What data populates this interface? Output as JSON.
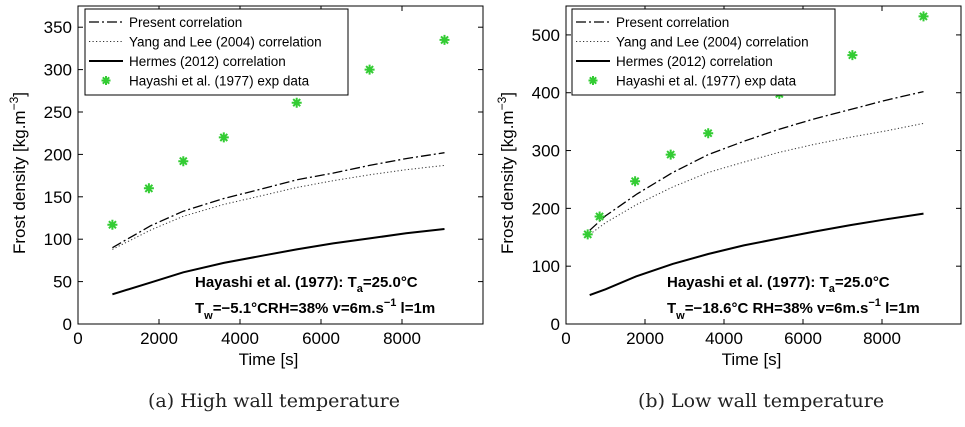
{
  "chart_data": [
    {
      "type": "line",
      "panel": "a",
      "xlabel": "Time [s]",
      "ylabel": "Frost density [kg.m",
      "ylabel_sup": "−3",
      "ylabel_close": "]",
      "xlim": [
        0,
        10000
      ],
      "ylim": [
        0,
        375
      ],
      "xticks": [
        0,
        2000,
        4000,
        6000,
        8000
      ],
      "yticks": [
        0,
        50,
        100,
        150,
        200,
        250,
        300,
        350
      ],
      "legend_position": "top-left",
      "series": [
        {
          "name": "Present correlation",
          "style": "dashdot",
          "x": [
            850,
            1800,
            2600,
            3600,
            4600,
            5400,
            6300,
            7200,
            8100,
            9050
          ],
          "y": [
            90,
            116,
            133,
            148,
            160,
            170,
            178,
            187,
            195,
            202
          ]
        },
        {
          "name": "Yang and Lee (2004) correlation",
          "style": "dotted",
          "x": [
            850,
            1800,
            2600,
            3600,
            4600,
            5400,
            6300,
            7200,
            8100,
            9050
          ],
          "y": [
            88,
            111,
            127,
            141,
            152,
            161,
            169,
            176,
            182,
            187
          ]
        },
        {
          "name": "Hermes (2012) correlation",
          "style": "solid",
          "x": [
            850,
            1800,
            2600,
            3600,
            4600,
            5400,
            6300,
            7200,
            8100,
            9050
          ],
          "y": [
            35,
            49,
            61,
            72,
            81,
            88,
            95,
            101,
            107,
            112
          ]
        },
        {
          "name": "Hayashi et al. (1977) exp data",
          "style": "star",
          "color": "#33cc33",
          "x": [
            850,
            1750,
            2600,
            3600,
            5400,
            7200,
            9050
          ],
          "y": [
            117,
            160,
            192,
            220,
            261,
            300,
            335
          ]
        }
      ],
      "annotation": {
        "line1_prefix": "Hayashi et al. (1977): T",
        "line1_sub": "a",
        "line1_suffix": "=25.0°C",
        "line2_prefix": "T",
        "line2_sub": "w",
        "line2_mid": "=−5.1°CRH=38% v=6m.s",
        "line2_sup": "−1",
        "line2_suffix": " l=1m"
      },
      "caption": "(a) High wall temperature"
    },
    {
      "type": "line",
      "panel": "b",
      "xlabel": "Time [s]",
      "ylabel": "Frost density [kg.m",
      "ylabel_sup": "−3",
      "ylabel_close": "]",
      "xlim": [
        0,
        10000
      ],
      "ylim": [
        0,
        550
      ],
      "xticks": [
        0,
        2000,
        4000,
        6000,
        8000
      ],
      "yticks": [
        0,
        100,
        200,
        300,
        400,
        500
      ],
      "legend_position": "top-left",
      "series": [
        {
          "name": "Present correlation",
          "style": "dashdot",
          "x": [
            600,
            1000,
            1800,
            2700,
            3600,
            4500,
            5400,
            6300,
            7200,
            8100,
            9050
          ],
          "y": [
            162,
            187,
            225,
            262,
            293,
            316,
            337,
            355,
            371,
            387,
            402
          ]
        },
        {
          "name": "Yang and Lee (2004) correlation",
          "style": "dotted",
          "x": [
            600,
            1000,
            1800,
            2700,
            3600,
            4500,
            5400,
            6300,
            7200,
            8100,
            9050
          ],
          "y": [
            155,
            175,
            207,
            237,
            262,
            280,
            297,
            311,
            323,
            334,
            347
          ]
        },
        {
          "name": "Hermes (2012) correlation",
          "style": "solid",
          "x": [
            600,
            1000,
            1800,
            2700,
            3600,
            4500,
            5400,
            6300,
            7200,
            8100,
            9050
          ],
          "y": [
            50,
            60,
            83,
            104,
            121,
            136,
            148,
            160,
            171,
            181,
            191
          ]
        },
        {
          "name": "Hayashi et al. (1977) exp data",
          "style": "star",
          "color": "#33cc33",
          "x": [
            550,
            850,
            1750,
            2650,
            3600,
            5400,
            7250,
            9050
          ],
          "y": [
            155,
            186,
            247,
            293,
            330,
            398,
            465,
            532
          ]
        }
      ],
      "annotation": {
        "line1_prefix": "Hayashi et al. (1977): T",
        "line1_sub": "a",
        "line1_suffix": "=25.0°C",
        "line2_prefix": "T",
        "line2_sub": "w",
        "line2_mid": "=−18.6°C RH=38% v=6m.s",
        "line2_sup": "−1",
        "line2_suffix": " l=1m"
      },
      "caption": "(b) Low wall temperature"
    }
  ]
}
